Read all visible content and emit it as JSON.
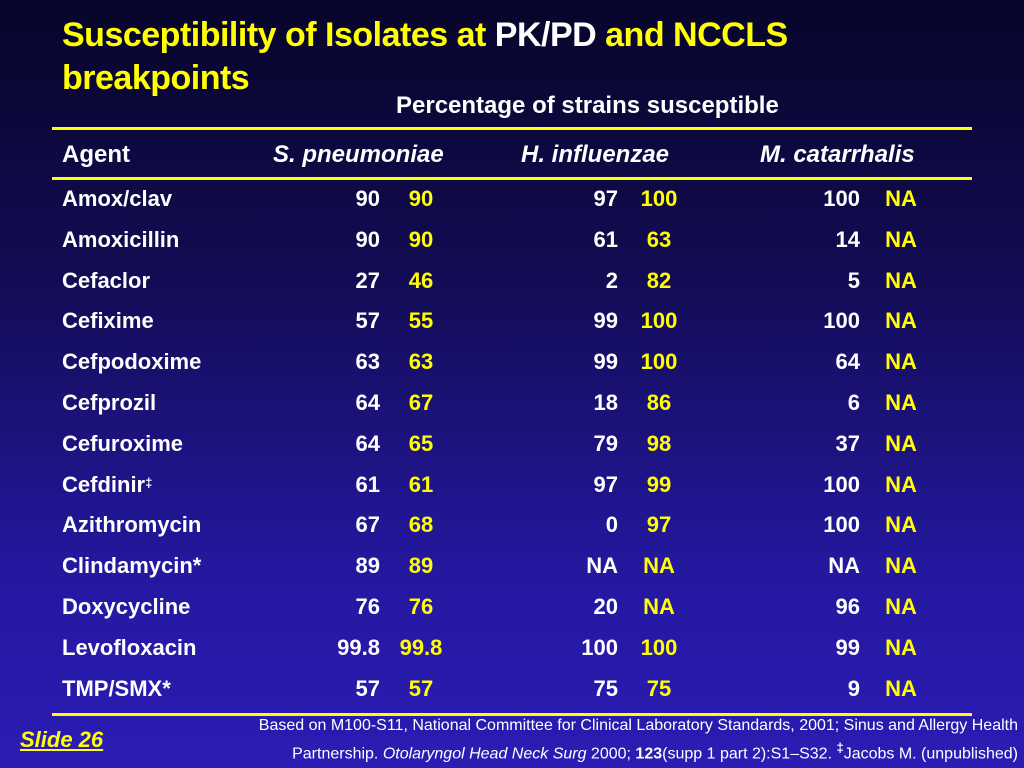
{
  "title": {
    "part1": "Susceptibility of Isolates at ",
    "part2": "PK/PD",
    "part3": " and NCCLS breakpoints"
  },
  "subtitle": "Percentage of strains susceptible",
  "headers": {
    "agent": "Agent",
    "sp": "S. pneumoniae",
    "hi": "H. influenzae",
    "mc": "M. catarrhalis"
  },
  "rows": [
    {
      "agent": "Amox/clav",
      "mark": "",
      "v": [
        "90",
        "90",
        "97",
        "100",
        "100",
        "NA"
      ]
    },
    {
      "agent": "Amoxicillin",
      "mark": "",
      "v": [
        "90",
        "90",
        "61",
        "63",
        "14",
        "NA"
      ]
    },
    {
      "agent": "Cefaclor",
      "mark": "",
      "v": [
        "27",
        "46",
        "2",
        "82",
        "5",
        "NA"
      ]
    },
    {
      "agent": "Cefixime",
      "mark": "",
      "v": [
        "57",
        "55",
        "99",
        "100",
        "100",
        "NA"
      ]
    },
    {
      "agent": "Cefpodoxime",
      "mark": "",
      "v": [
        "63",
        "63",
        "99",
        "100",
        "64",
        "NA"
      ]
    },
    {
      "agent": "Cefprozil",
      "mark": "",
      "v": [
        "64",
        "67",
        "18",
        "86",
        "6",
        "NA"
      ]
    },
    {
      "agent": "Cefuroxime",
      "mark": "",
      "v": [
        "64",
        "65",
        "79",
        "98",
        "37",
        "NA"
      ]
    },
    {
      "agent": "Cefdinir",
      "mark": "‡",
      "v": [
        "61",
        "61",
        "97",
        "99",
        "100",
        "NA"
      ]
    },
    {
      "agent": "Azithromycin",
      "mark": "",
      "v": [
        "67",
        "68",
        "0",
        "97",
        "100",
        "NA"
      ]
    },
    {
      "agent": "Clindamycin*",
      "mark": "",
      "v": [
        "89",
        "89",
        "NA",
        "NA",
        "NA",
        "NA"
      ]
    },
    {
      "agent": "Doxycycline",
      "mark": "",
      "v": [
        "76",
        "76",
        "20",
        "NA",
        "96",
        "NA"
      ]
    },
    {
      "agent": "Levofloxacin",
      "mark": "",
      "v": [
        "99.8",
        "99.8",
        "100",
        "100",
        "99",
        "NA"
      ]
    },
    {
      "agent": "TMP/SMX*",
      "mark": "",
      "v": [
        "57",
        "57",
        "75",
        "75",
        "9",
        "NA"
      ]
    }
  ],
  "slide_label": "Slide  26",
  "footnote": {
    "line1": "Based on M100-S11, National Committee for Clinical Laboratory Standards, 2001; Sinus and Allergy Health",
    "line2_a": "Partnership. ",
    "journal": "Otolaryngol Head Neck Surg",
    "line2_b": " 2000; ",
    "volume": "123",
    "line2_c": "(supp 1 part 2):S1–S32. ",
    "mark": "‡",
    "line2_d": "Jacobs M. (unpublished)"
  },
  "colors": {
    "accent": "#ffff00",
    "text": "#ffffff",
    "background_top": "#07052a",
    "background_bottom": "#2c1cb4"
  }
}
